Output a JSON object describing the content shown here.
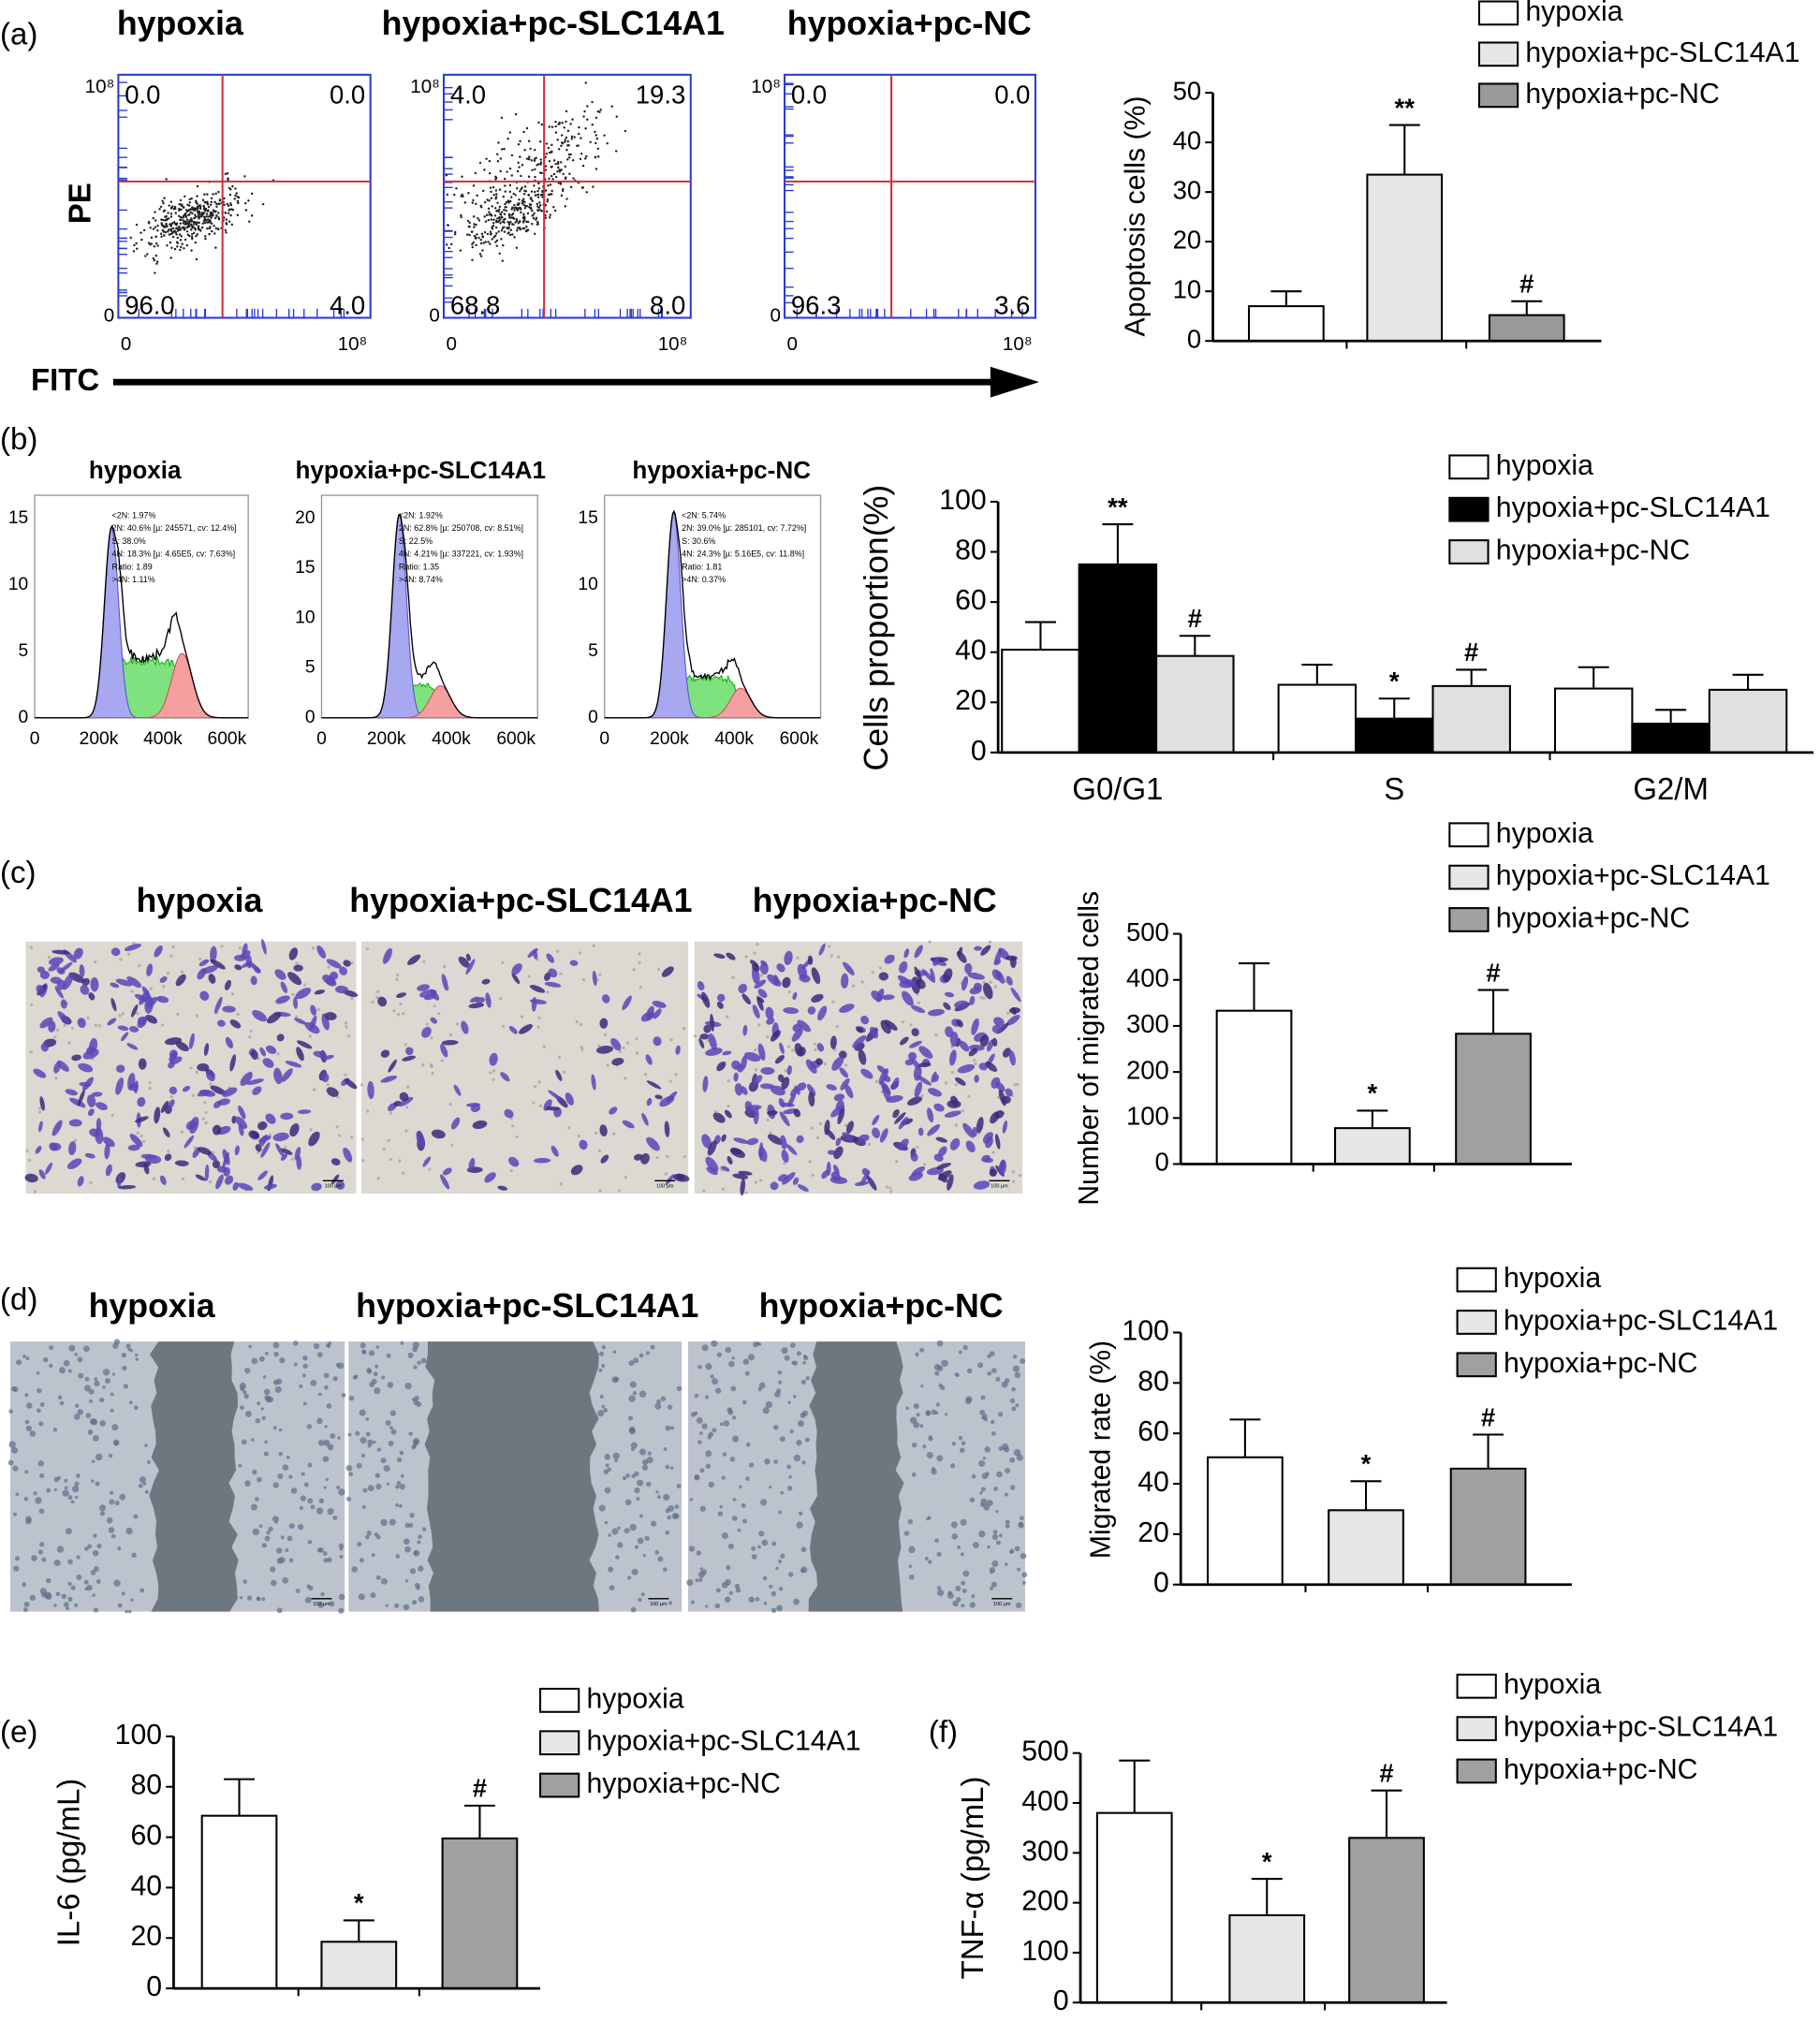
{
  "panel_labels": [
    "(a)",
    "(b)",
    "(c)",
    "(d)",
    "(e)",
    "(f)"
  ],
  "flow": {
    "plots": [
      {
        "title": "hypoxia",
        "quadrants": [
          "0.0",
          "0.0",
          "96.0",
          "4.0"
        ]
      },
      {
        "title": "hypoxia+pc-SLC14A1",
        "quadrants": [
          "4.0",
          "19.3",
          "68.8",
          "8.0"
        ]
      },
      {
        "title": "hypoxia+pc-NC",
        "quadrants": [
          "0.0",
          "0.0",
          "96.3",
          "3.6"
        ]
      }
    ],
    "y_top": "10⁸",
    "y_bottom": "0",
    "x_left": "0",
    "x_right": "10⁸",
    "y_label": "PE",
    "x_label": "FITC"
  },
  "cycle": {
    "plots": [
      {
        "title": "hypoxia",
        "yticks": [
          "0",
          "5",
          "10",
          "15"
        ],
        "stats": [
          "<2N: 1.97%",
          "2N: 40.6% [µ: 245571, cv: 12.4%]",
          "S: 38.0%",
          "4N: 18.3% [µ: 4.65E5, cv: 7.63%]",
          "Ratio: 1.89",
          ">4N: 1.11%"
        ]
      },
      {
        "title": "hypoxia+pc-SLC14A1",
        "yticks": [
          "0",
          "5",
          "10",
          "15",
          "20"
        ],
        "stats": [
          "<2N: 1.92%",
          "2N: 62.8% [µ: 250708, cv: 8.51%]",
          "S: 22.5%",
          "4N: 4.21% [µ: 337221, cv: 1.93%]",
          "Ratio: 1.35",
          ">4N: 8.74%"
        ]
      },
      {
        "title": "hypoxia+pc-NC",
        "yticks": [
          "0",
          "5",
          "10",
          "15"
        ],
        "stats": [
          "<2N: 5.74%",
          "2N: 39.0% [µ: 285101, cv: 7.72%]",
          "S: 30.6%",
          "4N: 24.3% [µ: 5.16E5, cv: 11.8%]",
          "Ratio: 1.81",
          ">4N: 0.37%"
        ]
      }
    ],
    "xticks": [
      "0",
      "200k",
      "400k",
      "600k"
    ]
  },
  "migration_images": {
    "titles": [
      "hypoxia",
      "hypoxia+pc-SLC14A1",
      "hypoxia+pc-NC"
    ],
    "scale": "100 μm"
  },
  "scratch_images": {
    "titles": [
      "hypoxia",
      "hypoxia+pc-SLC14A1",
      "hypoxia+pc-NC"
    ],
    "scale": "100 μm"
  },
  "chart_data": [
    {
      "type": "bar",
      "y_label": "Apoptosis cells (%)",
      "ylim": [
        0,
        50
      ],
      "yticks": [
        0,
        10,
        20,
        30,
        40,
        50
      ],
      "series": [
        {
          "name": "hypoxia",
          "color": "#ffffff",
          "values": [
            7
          ],
          "errors": [
            3
          ]
        },
        {
          "name": "hypoxia+pc-SLC14A1",
          "color": "#e6e6e6",
          "values": [
            33.5
          ],
          "errors": [
            10
          ],
          "annotations": [
            "**"
          ]
        },
        {
          "name": "hypoxia+pc-NC",
          "color": "#999999",
          "values": [
            5.2
          ],
          "errors": [
            2.8
          ],
          "annotations": [
            "#"
          ]
        }
      ]
    },
    {
      "type": "bar",
      "y_label": "Cells proportion(%)",
      "categories": [
        "G0/G1",
        "S",
        "G2/M"
      ],
      "ylim": [
        0,
        100
      ],
      "yticks": [
        0,
        20,
        40,
        60,
        80,
        100
      ],
      "series": [
        {
          "name": "hypoxia",
          "color": "#ffffff",
          "values": [
            41,
            27,
            25.5
          ],
          "errors": [
            11,
            8,
            8.5
          ]
        },
        {
          "name": "hypoxia+pc-SLC14A1",
          "color": "#000000",
          "values": [
            75,
            13.5,
            11.5
          ],
          "errors": [
            16,
            8,
            5.5
          ],
          "annotations": [
            "**",
            "*",
            null
          ]
        },
        {
          "name": "hypoxia+pc-NC",
          "color": "#e0e0e0",
          "values": [
            38.5,
            26.5,
            25
          ],
          "errors": [
            8,
            6.5,
            6
          ],
          "annotations": [
            "#",
            "#",
            null
          ]
        }
      ]
    },
    {
      "type": "bar",
      "y_label": "Number of migrated cells",
      "ylim": [
        0,
        500
      ],
      "yticks": [
        0,
        100,
        200,
        300,
        400,
        500
      ],
      "series": [
        {
          "name": "hypoxia",
          "color": "#ffffff",
          "values": [
            333
          ],
          "errors": [
            103
          ]
        },
        {
          "name": "hypoxia+pc-SLC14A1",
          "color": "#e6e6e6",
          "values": [
            78
          ],
          "errors": [
            38
          ],
          "annotations": [
            "*"
          ]
        },
        {
          "name": "hypoxia+pc-NC",
          "color": "#a0a0a0",
          "values": [
            283
          ],
          "errors": [
            95
          ],
          "annotations": [
            "#"
          ]
        }
      ]
    },
    {
      "type": "bar",
      "y_label": "Migrated rate (%)",
      "ylim": [
        0,
        100
      ],
      "yticks": [
        0,
        20,
        40,
        60,
        80,
        100
      ],
      "series": [
        {
          "name": "hypoxia",
          "color": "#ffffff",
          "values": [
            50.5
          ],
          "errors": [
            15
          ]
        },
        {
          "name": "hypoxia+pc-SLC14A1",
          "color": "#e6e6e6",
          "values": [
            29.5
          ],
          "errors": [
            11.5
          ],
          "annotations": [
            "*"
          ]
        },
        {
          "name": "hypoxia+pc-NC",
          "color": "#a0a0a0",
          "values": [
            46
          ],
          "errors": [
            13.5
          ],
          "annotations": [
            "#"
          ]
        }
      ]
    },
    {
      "type": "bar",
      "y_label": "IL-6 (pg/mL)",
      "ylim": [
        0,
        100
      ],
      "yticks": [
        0,
        20,
        40,
        60,
        80,
        100
      ],
      "series": [
        {
          "name": "hypoxia",
          "color": "#ffffff",
          "values": [
            68.5
          ],
          "errors": [
            14.5
          ]
        },
        {
          "name": "hypoxia+pc-SLC14A1",
          "color": "#e6e6e6",
          "values": [
            18.5
          ],
          "errors": [
            8.5
          ],
          "annotations": [
            "*"
          ]
        },
        {
          "name": "hypoxia+pc-NC",
          "color": "#a0a0a0",
          "values": [
            59.5
          ],
          "errors": [
            13
          ],
          "annotations": [
            "#"
          ]
        }
      ]
    },
    {
      "type": "bar",
      "y_label": "TNF-α (pg/mL)",
      "ylim": [
        0,
        500
      ],
      "yticks": [
        0,
        100,
        200,
        300,
        400,
        500
      ],
      "series": [
        {
          "name": "hypoxia",
          "color": "#ffffff",
          "values": [
            380
          ],
          "errors": [
            105
          ]
        },
        {
          "name": "hypoxia+pc-SLC14A1",
          "color": "#e6e6e6",
          "values": [
            175
          ],
          "errors": [
            73
          ],
          "annotations": [
            "*"
          ]
        },
        {
          "name": "hypoxia+pc-NC",
          "color": "#a0a0a0",
          "values": [
            330
          ],
          "errors": [
            95
          ],
          "annotations": [
            "#"
          ]
        }
      ]
    }
  ]
}
